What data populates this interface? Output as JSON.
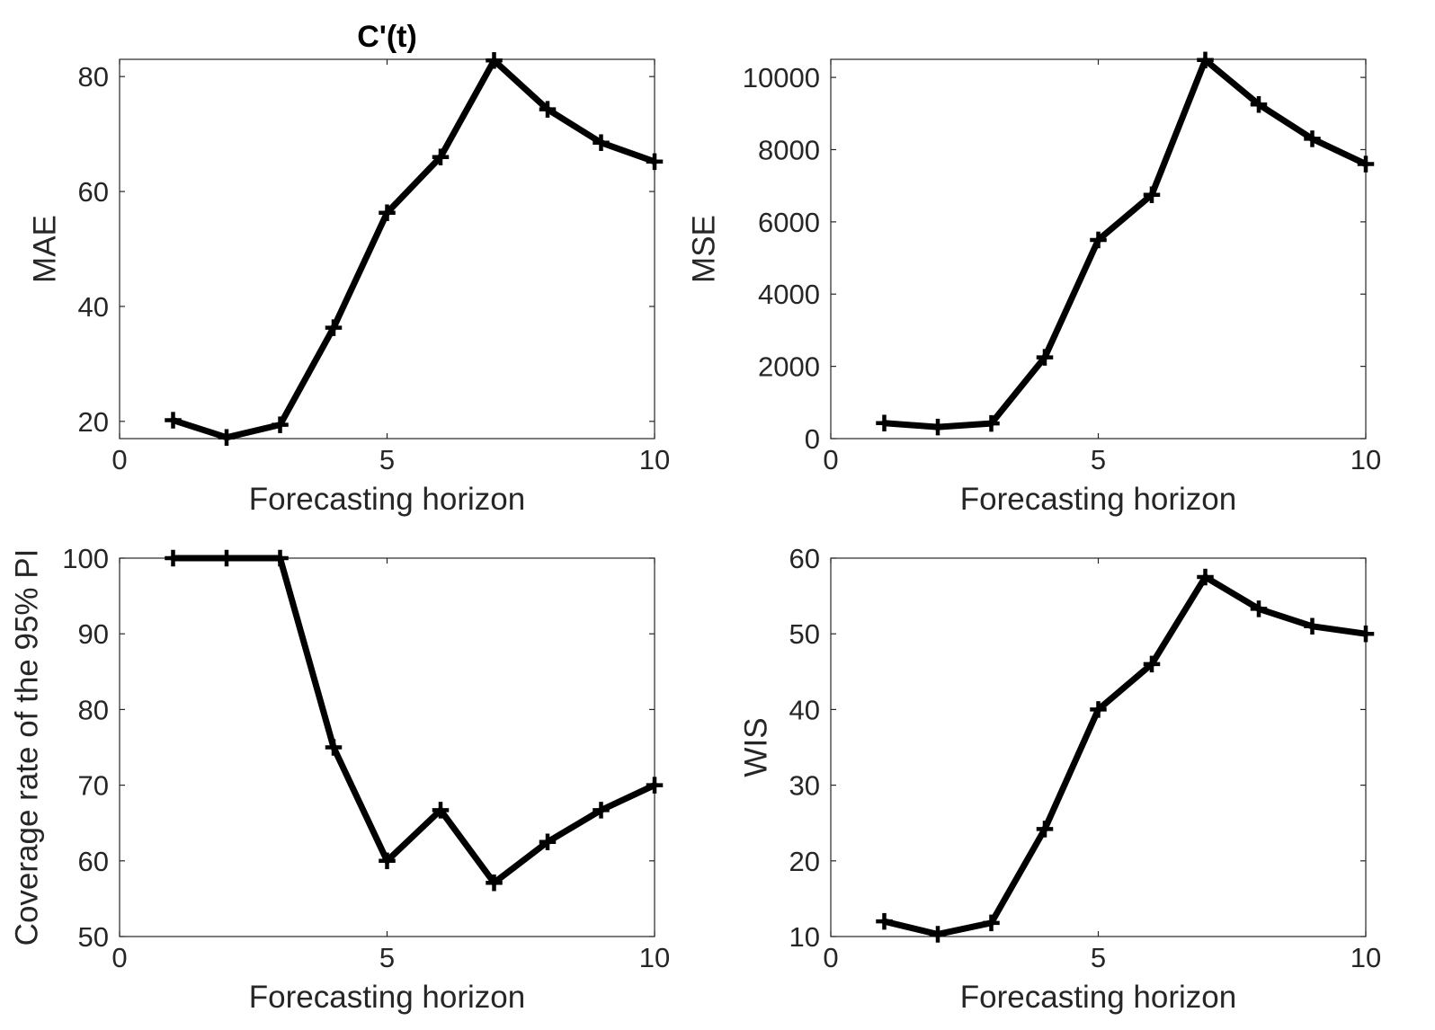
{
  "chart_data": [
    {
      "type": "line",
      "title": "C'(t)",
      "xlabel": "Forecasting horizon",
      "ylabel": "MAE",
      "xlim": [
        0,
        10
      ],
      "ylim": [
        17,
        83
      ],
      "xticks": [
        0,
        5,
        10
      ],
      "yticks": [
        20,
        40,
        60,
        80
      ],
      "x": [
        1,
        2,
        3,
        4,
        5,
        6,
        7,
        8,
        9,
        10
      ],
      "series": [
        {
          "values": [
            20.2,
            17.2,
            19.4,
            36.3,
            56.3,
            66.0,
            82.8,
            74.3,
            68.5,
            65.2
          ]
        }
      ],
      "grid": false
    },
    {
      "type": "line",
      "title": "",
      "xlabel": "Forecasting horizon",
      "ylabel": "MSE",
      "xlim": [
        0,
        10
      ],
      "ylim": [
        0,
        10500
      ],
      "xticks": [
        0,
        5,
        10
      ],
      "yticks": [
        0,
        2000,
        4000,
        6000,
        8000,
        10000
      ],
      "x": [
        1,
        2,
        3,
        4,
        5,
        6,
        7,
        8,
        9,
        10
      ],
      "series": [
        {
          "values": [
            430,
            320,
            420,
            2250,
            5500,
            6750,
            10480,
            9250,
            8300,
            7600
          ]
        }
      ],
      "grid": false
    },
    {
      "type": "line",
      "title": "",
      "xlabel": "Forecasting horizon",
      "ylabel": "Coverage rate of the 95% PI",
      "xlim": [
        0,
        10
      ],
      "ylim": [
        50,
        100
      ],
      "xticks": [
        0,
        5,
        10
      ],
      "yticks": [
        50,
        60,
        70,
        80,
        90,
        100
      ],
      "x": [
        1,
        2,
        3,
        4,
        5,
        6,
        7,
        8,
        9,
        10
      ],
      "series": [
        {
          "values": [
            100,
            100,
            100,
            75,
            60,
            66.7,
            57.1,
            62.5,
            66.7,
            70
          ]
        }
      ],
      "grid": false
    },
    {
      "type": "line",
      "title": "",
      "xlabel": "Forecasting horizon",
      "ylabel": "WIS",
      "xlim": [
        0,
        10
      ],
      "ylim": [
        10,
        60
      ],
      "xticks": [
        0,
        5,
        10
      ],
      "yticks": [
        10,
        20,
        30,
        40,
        50,
        60
      ],
      "x": [
        1,
        2,
        3,
        4,
        5,
        6,
        7,
        8,
        9,
        10
      ],
      "series": [
        {
          "values": [
            12.0,
            10.3,
            11.8,
            24.2,
            40.0,
            46.0,
            57.5,
            53.3,
            51.0,
            50.0
          ]
        }
      ],
      "grid": false
    }
  ]
}
